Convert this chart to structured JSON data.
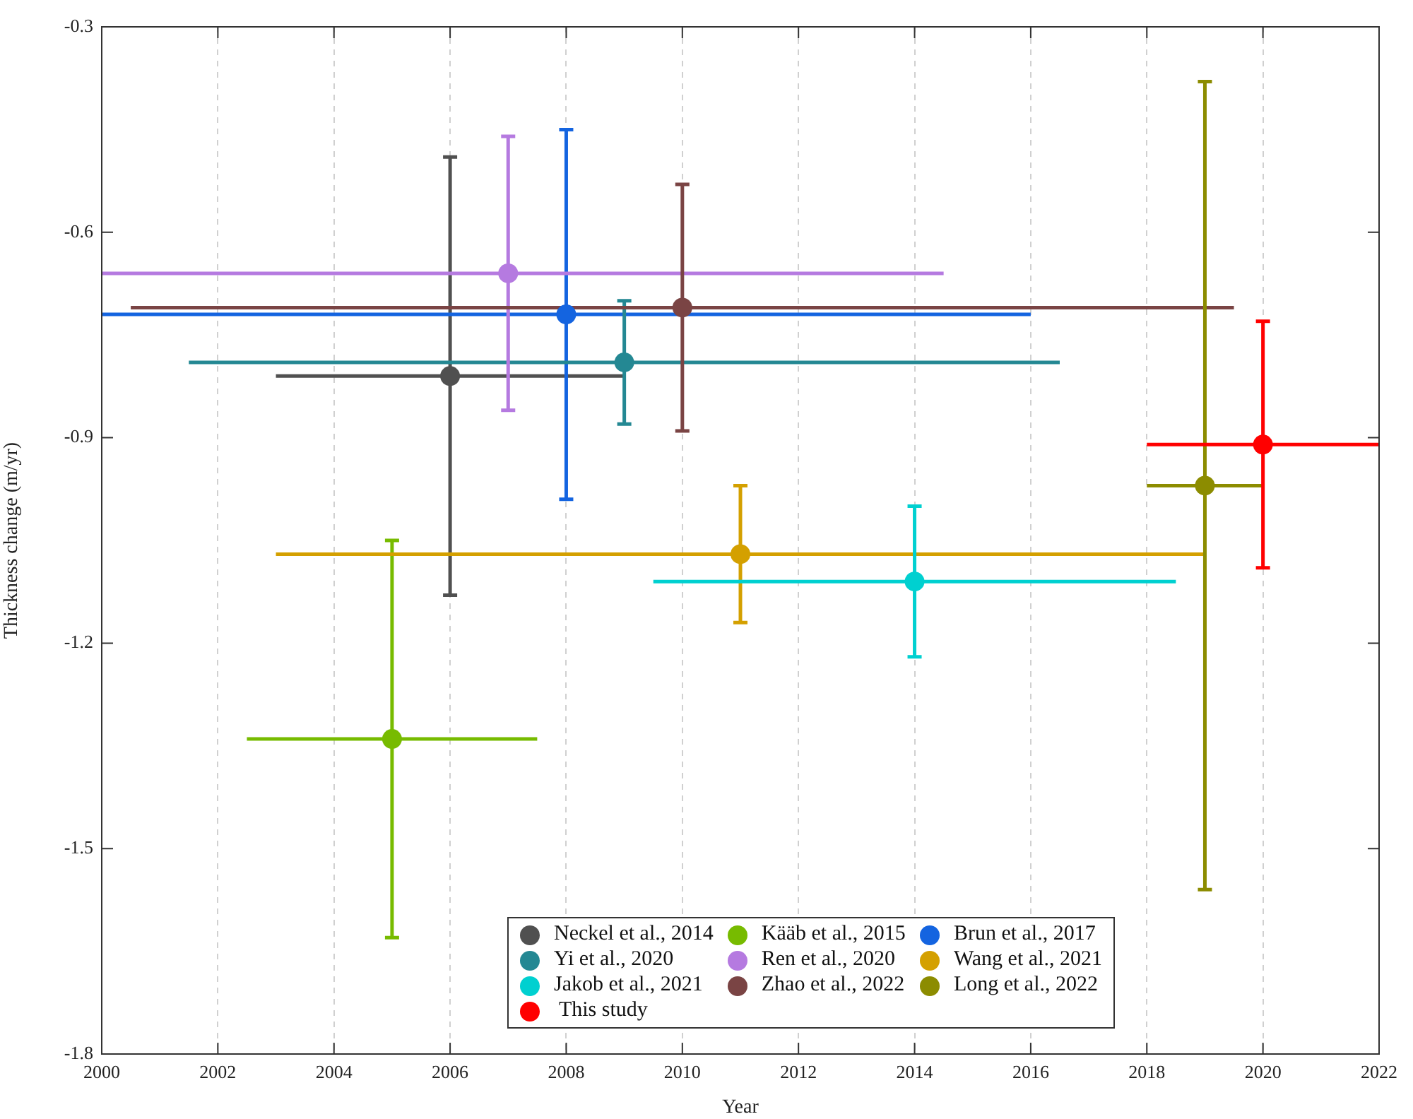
{
  "chart_data": {
    "type": "scatter",
    "xlabel": "Year",
    "ylabel": "Thickness change (m/yr)",
    "xlim": [
      2000,
      2022
    ],
    "xticks": [
      2000,
      2002,
      2004,
      2006,
      2008,
      2010,
      2012,
      2014,
      2016,
      2018,
      2020,
      2022
    ],
    "ylim": [
      -1.8,
      -0.3
    ],
    "yticks": [
      -1.8,
      -1.5,
      -1.2,
      -0.9,
      -0.6,
      -0.3
    ],
    "grid": "x",
    "legend": "bottom",
    "marker": "circle",
    "series": [
      {
        "name": "Neckel et al., 2014",
        "color": "#505050",
        "x": [
          2006
        ],
        "values": [
          -0.81
        ],
        "errors": [
          [
            -1.13,
            -0.49
          ]
        ],
        "xerrors": [
          [
            2003,
            2009
          ]
        ]
      },
      {
        "name": "Kääb et al., 2015",
        "color": "#77bb00",
        "x": [
          2005
        ],
        "values": [
          -1.34
        ],
        "errors": [
          [
            -1.63,
            -1.05
          ]
        ],
        "xerrors": [
          [
            2002.5,
            2007.5
          ]
        ]
      },
      {
        "name": "Brun et al., 2017",
        "color": "#1464e0",
        "x": [
          2008
        ],
        "values": [
          -0.72
        ],
        "errors": [
          [
            -0.99,
            -0.45
          ]
        ],
        "xerrors": [
          [
            2000,
            2016
          ]
        ]
      },
      {
        "name": "Yi et al., 2020",
        "color": "#248893",
        "x": [
          2009
        ],
        "values": [
          -0.79
        ],
        "errors": [
          [
            -0.88,
            -0.7
          ]
        ],
        "xerrors": [
          [
            2001.5,
            2016.5
          ]
        ]
      },
      {
        "name": "Ren et al., 2020",
        "color": "#b57ae0",
        "x": [
          2007
        ],
        "values": [
          -0.66
        ],
        "errors": [
          [
            -0.86,
            -0.46
          ]
        ],
        "xerrors": [
          [
            2000,
            2014.5
          ]
        ]
      },
      {
        "name": "Wang et al., 2021",
        "color": "#d4a000",
        "x": [
          2011
        ],
        "values": [
          -1.07
        ],
        "errors": [
          [
            -1.17,
            -0.97
          ]
        ],
        "xerrors": [
          [
            2003,
            2019
          ]
        ]
      },
      {
        "name": "Jakob et al., 2021",
        "color": "#00d0d0",
        "x": [
          2014
        ],
        "values": [
          -1.11
        ],
        "errors": [
          [
            -1.22,
            -1.0
          ]
        ],
        "xerrors": [
          [
            2009.5,
            2018.5
          ]
        ]
      },
      {
        "name": "Zhao et al., 2022",
        "color": "#7a4444",
        "x": [
          2010
        ],
        "values": [
          -0.71
        ],
        "errors": [
          [
            -0.89,
            -0.53
          ]
        ],
        "xerrors": [
          [
            2000.5,
            2019.5
          ]
        ]
      },
      {
        "name": "Long et al., 2022",
        "color": "#8c8c00",
        "x": [
          2019
        ],
        "values": [
          -0.97
        ],
        "errors": [
          [
            -1.56,
            -0.38
          ]
        ],
        "xerrors": [
          [
            2018,
            2020
          ]
        ]
      },
      {
        "name": " This study",
        "color": "#ff0000",
        "x": [
          2020
        ],
        "values": [
          -0.91
        ],
        "errors": [
          [
            -1.09,
            -0.73
          ]
        ],
        "xerrors": [
          [
            2018,
            2022
          ]
        ]
      }
    ]
  }
}
